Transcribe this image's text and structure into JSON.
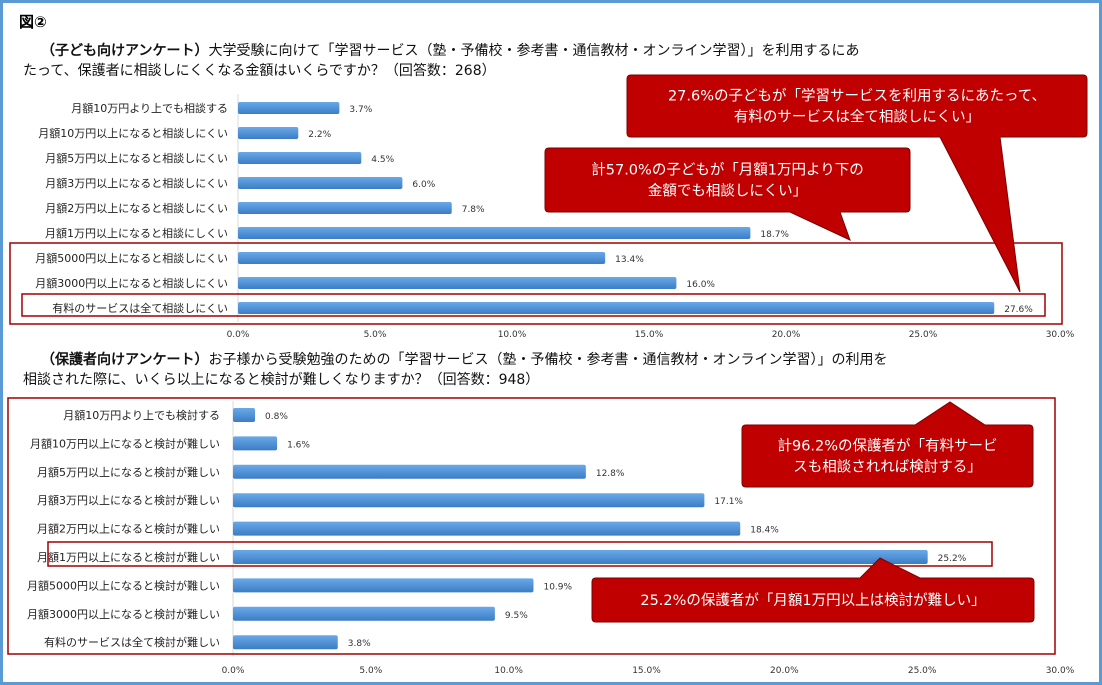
{
  "figure_label": "図②",
  "colors": {
    "bar": "#4a8fd6",
    "callout": "#c00000",
    "highlight": "#a00000",
    "frame": "#5b9bd5"
  },
  "chart_data": [
    {
      "type": "bar",
      "orientation": "horizontal",
      "title_bold": "（子ども向けアンケート）",
      "title": "大学受験に向けて「学習サービス（塾・予備校・参考書・通信教材・オンライン学習）」を利用するにあ",
      "title_line2": "たって、保護者に相談しにくくなる金額はいくらですか？（回答数：268）",
      "categories": [
        "月額10万円より上でも相談する",
        "月額10万円以上になると相談しにくい",
        "月額5万円以上になると相談しにくい",
        "月額3万円以上になると相談しにくい",
        "月額2万円以上になると相談しにくい",
        "月額1万円以上になると相談にしくい",
        "月額5000円以上になると相談しにくい",
        "月額3000円以上になると相談しにくい",
        "有料のサービスは全て相談しにくい"
      ],
      "values": [
        3.7,
        2.2,
        4.5,
        6.0,
        7.8,
        18.7,
        13.4,
        16.0,
        27.6
      ],
      "value_labels": [
        "3.7%",
        "2.2%",
        "4.5%",
        "6.0%",
        "7.8%",
        "18.7%",
        "13.4%",
        "16.0%",
        "27.6%"
      ],
      "xlim": [
        0,
        30
      ],
      "xticks": [
        "0.0%",
        "5.0%",
        "10.0%",
        "15.0%",
        "20.0%",
        "25.0%",
        "30.0%"
      ],
      "annotations": [
        {
          "line1": "27.6%の子どもが「学習サービスを利用するにあたって、",
          "line2": "有料のサービスは全て相談しにくい」"
        },
        {
          "line1": "計57.0%の子どもが「月額1万円より下の",
          "line2": "金額でも相談しにくい」"
        }
      ]
    },
    {
      "type": "bar",
      "orientation": "horizontal",
      "title_bold": "（保護者向けアンケート）",
      "title": "お子様から受験勉強のための「学習サービス（塾・予備校・参考書・通信教材・オンライン学習）」の利用を",
      "title_line2": "相談された際に、いくら以上になると検討が難しくなりますか？（回答数：948）",
      "categories": [
        "月額10万円より上でも検討する",
        "月額10万円以上になると検討が難しい",
        "月額5万円以上になると検討が難しい",
        "月額3万円以上になると検討が難しい",
        "月額2万円以上になると検討が難しい",
        "月額1万円以上になると検討が難しい",
        "月額5000円以上になると検討が難しい",
        "月額3000円以上になると検討が難しい",
        "有料のサービスは全て検討が難しい"
      ],
      "values": [
        0.8,
        1.6,
        12.8,
        17.1,
        18.4,
        25.2,
        10.9,
        9.5,
        3.8
      ],
      "value_labels": [
        "0.8%",
        "1.6%",
        "12.8%",
        "17.1%",
        "18.4%",
        "25.2%",
        "10.9%",
        "9.5%",
        "3.8%"
      ],
      "xlim": [
        0,
        30
      ],
      "xticks": [
        "0.0%",
        "5.0%",
        "10.0%",
        "15.0%",
        "20.0%",
        "25.0%",
        "30.0%"
      ],
      "annotations": [
        {
          "line1": "計96.2%の保護者が「有料サービ",
          "line2": "スも相談されれば検討する」"
        },
        {
          "line1": "25.2%の保護者が「月額1万円以上は検討が難しい」",
          "line2": ""
        }
      ]
    }
  ]
}
